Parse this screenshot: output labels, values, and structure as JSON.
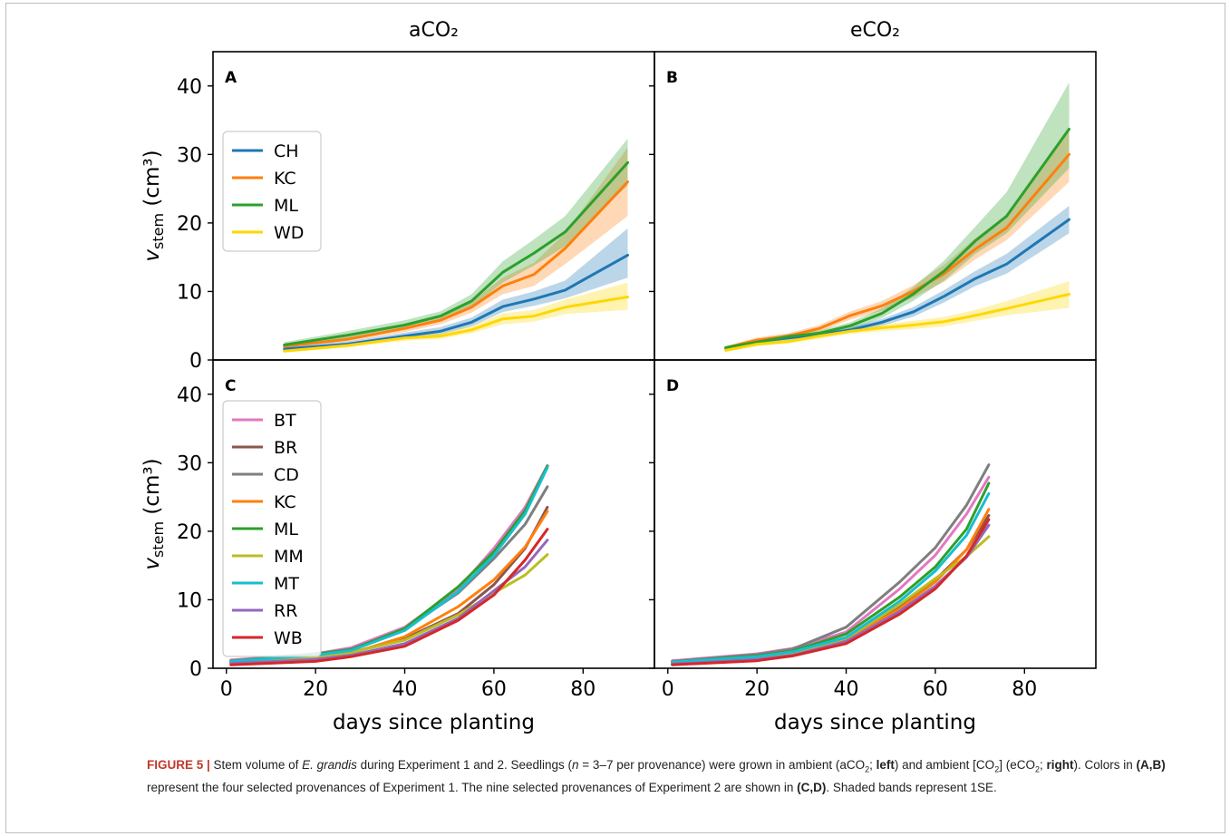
{
  "colors": {
    "CH": "#1f77b4",
    "KC": "#ff7f0e",
    "ML": "#2ca02c",
    "WD": "#ffd700",
    "BT": "#e377c2",
    "BR": "#8c564b",
    "CD": "#7f7f7f",
    "MM": "#bcbd22",
    "MT": "#17becf",
    "RR": "#9467bd",
    "WB": "#d62728"
  },
  "chart_data": {
    "type": "line",
    "column_titles": [
      "aCO₂",
      "eCO₂"
    ],
    "xlabel": "days since planting",
    "ylabel": "v_stem (cm³)",
    "xlim": [
      -3,
      96
    ],
    "ylim": [
      0,
      45
    ],
    "xticks": [
      0,
      20,
      40,
      60,
      80
    ],
    "yticks": [
      0,
      10,
      20,
      30,
      40
    ],
    "panels": [
      {
        "label": "A",
        "col": 0,
        "row": 0,
        "legend": "left",
        "series": [
          {
            "name": "CH",
            "x": [
              13,
              27,
              40,
              48,
              55,
              62,
              69,
              76,
              90
            ],
            "y": [
              1.6,
              2.3,
              3.5,
              4.2,
              5.5,
              7.8,
              8.9,
              10.2,
              15.3
            ],
            "lo": [
              1.4,
              2.0,
              3.1,
              3.7,
              4.9,
              7.0,
              7.9,
              9.0,
              12.0
            ],
            "hi": [
              1.9,
              2.7,
              4.0,
              4.8,
              6.2,
              8.8,
              10.0,
              11.6,
              19.2
            ]
          },
          {
            "name": "KC",
            "x": [
              13,
              27,
              40,
              48,
              55,
              62,
              69,
              76,
              90
            ],
            "y": [
              2.0,
              3.0,
              4.6,
              5.8,
              7.7,
              10.8,
              12.5,
              16.3,
              26.0
            ],
            "lo": [
              1.8,
              2.7,
              4.1,
              5.2,
              6.9,
              9.6,
              10.8,
              14.0,
              21.0
            ],
            "hi": [
              2.3,
              3.4,
              5.1,
              6.4,
              8.5,
              12.0,
              14.2,
              18.5,
              31.0
            ]
          },
          {
            "name": "ML",
            "x": [
              13,
              27,
              40,
              48,
              55,
              62,
              69,
              76,
              90
            ],
            "y": [
              2.2,
              3.6,
              5.1,
              6.4,
              8.6,
              12.8,
              15.6,
              18.7,
              28.8
            ],
            "lo": [
              1.9,
              3.1,
              4.5,
              5.7,
              7.7,
              11.3,
              13.8,
              16.6,
              25.5
            ],
            "hi": [
              2.6,
              4.2,
              5.8,
              7.1,
              9.6,
              14.4,
              17.6,
              21.0,
              32.3
            ]
          },
          {
            "name": "WD",
            "x": [
              13,
              27,
              40,
              48,
              55,
              62,
              69,
              76,
              90
            ],
            "y": [
              1.3,
              2.1,
              3.2,
              3.5,
              4.4,
              6.0,
              6.4,
              7.7,
              9.2
            ],
            "lo": [
              1.1,
              1.8,
              2.8,
              3.1,
              3.9,
              5.2,
              5.6,
              6.7,
              7.3
            ],
            "hi": [
              1.5,
              2.4,
              3.6,
              3.9,
              5.0,
              6.8,
              7.3,
              8.8,
              11.3
            ]
          }
        ]
      },
      {
        "label": "B",
        "col": 1,
        "row": 0,
        "legend": "",
        "series": [
          {
            "name": "CH",
            "x": [
              13,
              20,
              27,
              34,
              41,
              48,
              55,
              62,
              69,
              76,
              90
            ],
            "y": [
              1.6,
              2.7,
              3.2,
              3.7,
              4.4,
              5.5,
              7.0,
              9.3,
              11.9,
              14.0,
              20.5
            ],
            "lo": [
              1.4,
              2.4,
              2.9,
              3.3,
              4.0,
              5.0,
              6.3,
              8.4,
              10.8,
              12.6,
              18.5
            ],
            "hi": [
              1.9,
              3.0,
              3.6,
              4.1,
              4.8,
              6.0,
              7.7,
              10.2,
              13.0,
              15.5,
              22.5
            ]
          },
          {
            "name": "KC",
            "x": [
              13,
              20,
              27,
              34,
              41,
              48,
              55,
              62,
              69,
              76,
              90
            ],
            "y": [
              1.8,
              2.9,
              3.5,
              4.6,
              6.5,
              7.9,
              10.0,
              12.6,
              16.2,
              19.3,
              30.0
            ],
            "lo": [
              1.6,
              2.5,
              3.1,
              4.1,
              5.9,
              7.2,
              9.1,
              11.4,
              14.7,
              17.5,
              26.0
            ],
            "hi": [
              2.0,
              3.3,
              3.9,
              5.1,
              7.1,
              8.6,
              10.9,
              13.9,
              17.8,
              21.1,
              34.0
            ]
          },
          {
            "name": "ML",
            "x": [
              13,
              20,
              27,
              34,
              41,
              48,
              55,
              62,
              69,
              76,
              90
            ],
            "y": [
              1.8,
              2.6,
              3.4,
              3.9,
              5.0,
              6.8,
              9.6,
              13.0,
              17.4,
              21.0,
              33.7
            ],
            "lo": [
              1.6,
              2.3,
              3.0,
              3.5,
              4.5,
              6.1,
              8.6,
              11.6,
              15.5,
              18.5,
              28.0
            ],
            "hi": [
              2.0,
              2.9,
              3.8,
              4.3,
              5.5,
              7.5,
              10.6,
              14.5,
              19.5,
              24.5,
              40.5
            ]
          },
          {
            "name": "WD",
            "x": [
              13,
              20,
              27,
              34,
              41,
              48,
              55,
              62,
              69,
              76,
              90
            ],
            "y": [
              1.4,
              2.3,
              2.7,
              3.5,
              4.2,
              4.7,
              5.1,
              5.6,
              6.5,
              7.5,
              9.6
            ],
            "lo": [
              1.2,
              2.0,
              2.4,
              3.1,
              3.8,
              4.2,
              4.5,
              4.9,
              5.7,
              6.5,
              7.6
            ],
            "hi": [
              1.6,
              2.6,
              3.0,
              3.9,
              4.6,
              5.2,
              5.7,
              6.3,
              7.3,
              8.6,
              11.5
            ]
          }
        ]
      },
      {
        "label": "C",
        "col": 0,
        "row": 1,
        "legend": "left",
        "series": [
          {
            "name": "BT",
            "x": [
              1,
              20,
              28,
              40,
              52,
              60,
              67,
              72
            ],
            "y": [
              1.2,
              2.1,
              3.0,
              6.0,
              11.6,
              17.5,
              23.5,
              29.6
            ]
          },
          {
            "name": "BR",
            "x": [
              1,
              20,
              28,
              40,
              52,
              60,
              67,
              72
            ],
            "y": [
              0.9,
              1.6,
              2.3,
              4.3,
              8.0,
              12.2,
              17.5,
              23.5
            ]
          },
          {
            "name": "CD",
            "x": [
              1,
              20,
              28,
              40,
              52,
              60,
              67,
              72
            ],
            "y": [
              1.1,
              2.1,
              2.8,
              5.7,
              11.0,
              16.0,
              21.0,
              26.5
            ]
          },
          {
            "name": "KC",
            "x": [
              1,
              20,
              28,
              40,
              52,
              60,
              67,
              72
            ],
            "y": [
              0.8,
              1.5,
              2.2,
              4.6,
              9.0,
              12.9,
              17.7,
              22.9
            ]
          },
          {
            "name": "ML",
            "x": [
              1,
              20,
              28,
              40,
              52,
              60,
              67,
              72
            ],
            "y": [
              1.0,
              2.0,
              2.7,
              5.8,
              11.9,
              17.0,
              23.0,
              29.5
            ]
          },
          {
            "name": "MM",
            "x": [
              1,
              20,
              28,
              40,
              52,
              60,
              67,
              72
            ],
            "y": [
              0.9,
              1.7,
              2.3,
              4.1,
              7.8,
              11.0,
              13.6,
              16.6
            ]
          },
          {
            "name": "MT",
            "x": [
              1,
              20,
              28,
              40,
              52,
              60,
              67,
              72
            ],
            "y": [
              1.0,
              1.9,
              2.6,
              5.5,
              11.2,
              16.5,
              22.5,
              29.3
            ]
          },
          {
            "name": "RR",
            "x": [
              1,
              20,
              28,
              40,
              52,
              60,
              67,
              72
            ],
            "y": [
              0.7,
              1.3,
              1.9,
              3.6,
              7.3,
              11.3,
              14.8,
              18.7
            ]
          },
          {
            "name": "WB",
            "x": [
              1,
              20,
              28,
              40,
              52,
              60,
              67,
              72
            ],
            "y": [
              0.5,
              1.0,
              1.7,
              3.2,
              7.0,
              10.7,
              15.8,
              20.3
            ]
          }
        ]
      },
      {
        "label": "D",
        "col": 1,
        "row": 1,
        "legend": "",
        "series": [
          {
            "name": "BT",
            "x": [
              1,
              20,
              28,
              40,
              52,
              60,
              67,
              72
            ],
            "y": [
              1.1,
              2.1,
              2.9,
              5.3,
              11.6,
              16.5,
              22.5,
              27.9
            ]
          },
          {
            "name": "BR",
            "x": [
              1,
              20,
              28,
              40,
              52,
              60,
              67,
              72
            ],
            "y": [
              0.8,
              1.5,
              2.1,
              4.3,
              9.0,
              12.9,
              17.3,
              22.3
            ]
          },
          {
            "name": "CD",
            "x": [
              1,
              20,
              28,
              40,
              52,
              60,
              67,
              72
            ],
            "y": [
              1.0,
              2.0,
              2.8,
              6.0,
              12.6,
              17.6,
              23.8,
              29.7
            ]
          },
          {
            "name": "KC",
            "x": [
              1,
              20,
              28,
              40,
              52,
              60,
              67,
              72
            ],
            "y": [
              0.8,
              1.4,
              2.1,
              4.1,
              8.7,
              12.6,
              17.3,
              23.2
            ]
          },
          {
            "name": "ML",
            "x": [
              1,
              20,
              28,
              40,
              52,
              60,
              67,
              72
            ],
            "y": [
              0.9,
              1.8,
              2.5,
              5.0,
              10.4,
              14.8,
              20.3,
              27.0
            ]
          },
          {
            "name": "MM",
            "x": [
              1,
              20,
              28,
              40,
              52,
              60,
              67,
              72
            ],
            "y": [
              0.8,
              1.5,
              2.2,
              4.4,
              9.3,
              13.1,
              16.3,
              19.2
            ]
          },
          {
            "name": "MT",
            "x": [
              1,
              20,
              28,
              40,
              52,
              60,
              67,
              72
            ],
            "y": [
              0.9,
              1.7,
              2.4,
              4.5,
              9.8,
              14.2,
              19.4,
              25.5
            ]
          },
          {
            "name": "RR",
            "x": [
              1,
              20,
              28,
              40,
              52,
              60,
              67,
              72
            ],
            "y": [
              0.6,
              1.3,
              1.9,
              3.9,
              8.3,
              12.0,
              16.2,
              20.9
            ]
          },
          {
            "name": "WB",
            "x": [
              1,
              20,
              28,
              40,
              52,
              60,
              67,
              72
            ],
            "y": [
              0.5,
              1.1,
              1.8,
              3.6,
              7.9,
              11.6,
              16.4,
              21.7
            ]
          }
        ]
      }
    ]
  },
  "caption": {
    "label": "FIGURE 5 |",
    "t1": " Stem volume of ",
    "species": "E. grandis",
    "t2": " during Experiment 1 and 2. Seedlings (",
    "n": "n",
    "t3": " = 3–7 per provenance) were grown in ambient (aCO",
    "sub1": "2",
    "t4": "; ",
    "left": "left",
    "t5": ") and ambient [CO",
    "sub2": "2",
    "t6": "] (eCO",
    "sub3": "2",
    "t7": "; ",
    "right": "right",
    "t8": "). Colors in ",
    "ab": "(A,B)",
    "t9": " represent the four selected provenances of Experiment 1. The nine selected provenances of Experiment 2 are shown in ",
    "cd": "(C,D)",
    "t10": ". Shaded bands represent 1SE."
  }
}
